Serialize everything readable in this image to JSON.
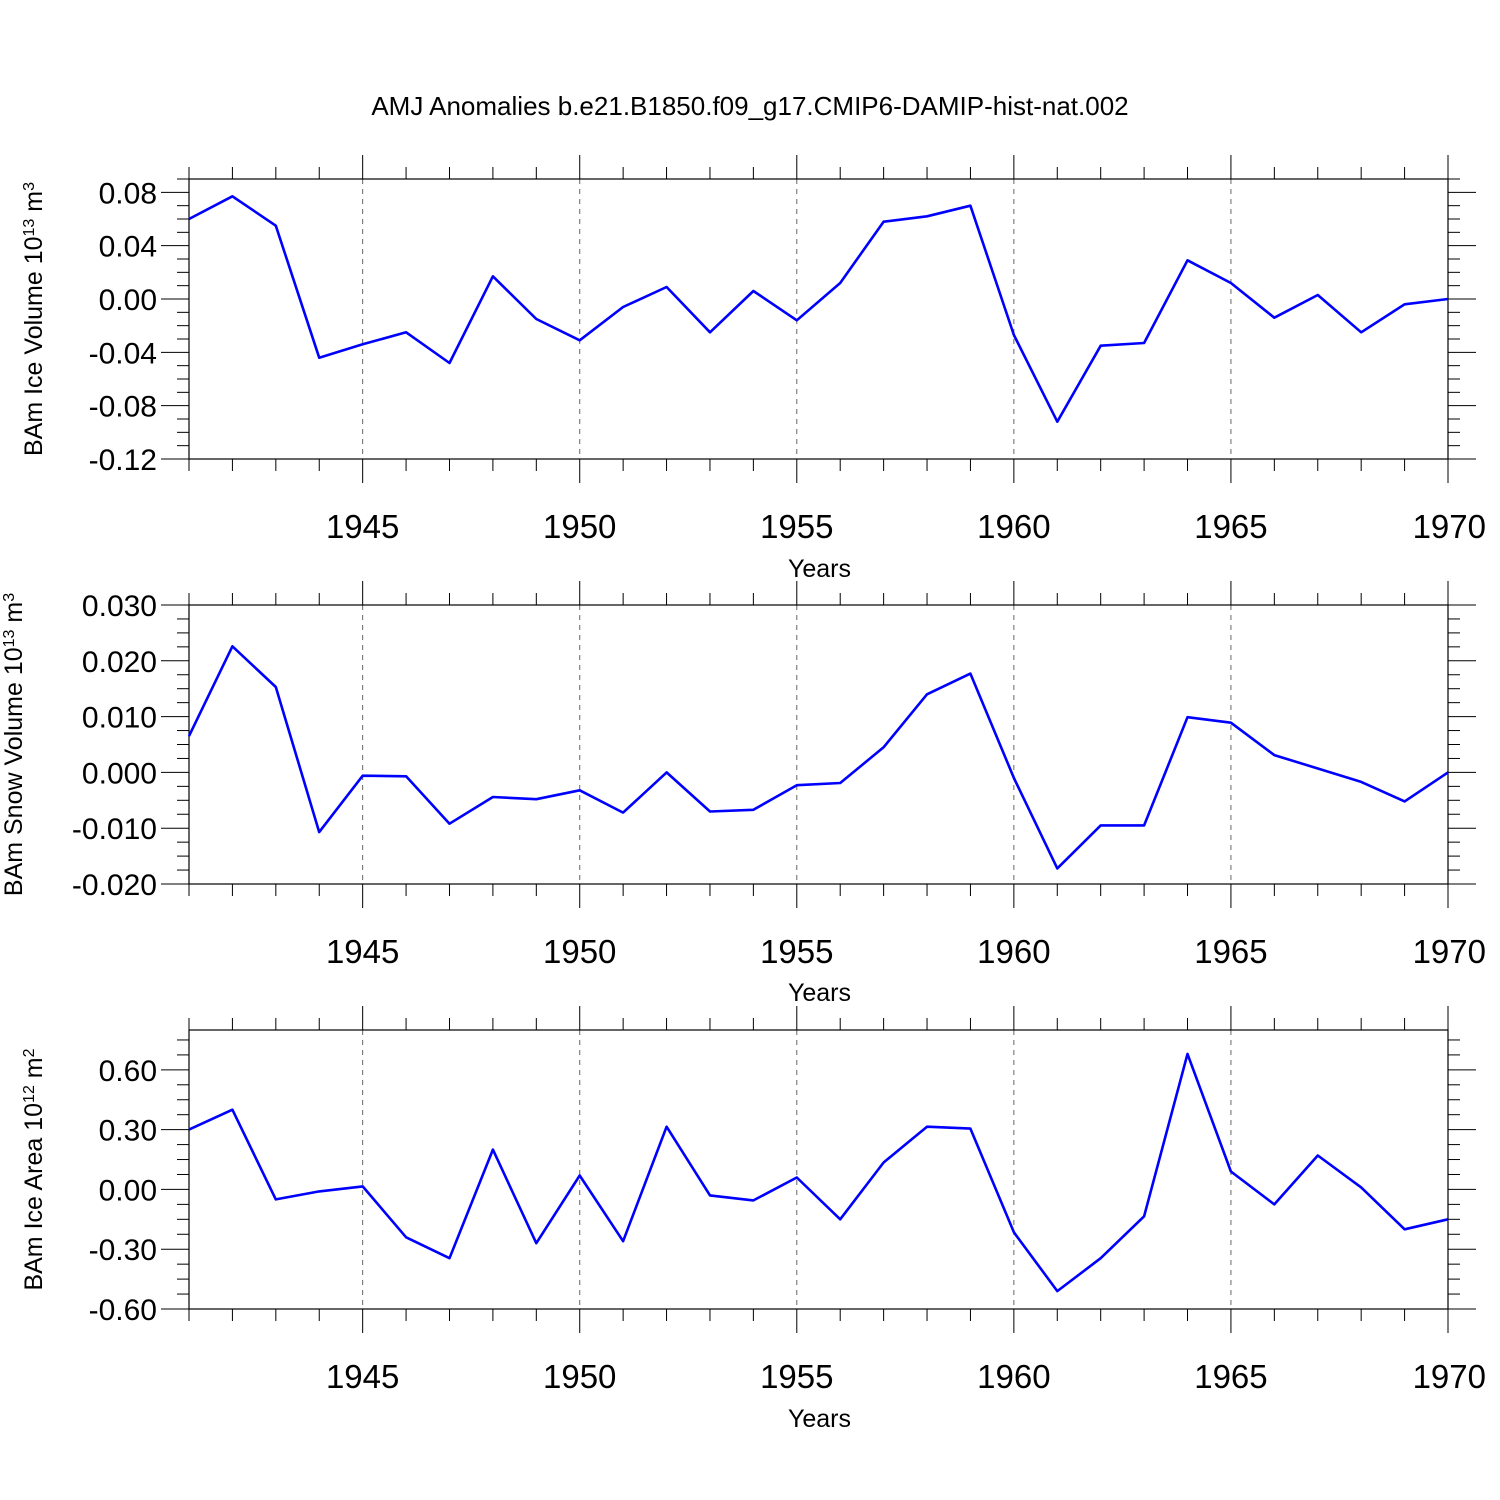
{
  "title": "AMJ Anomalies b.e21.B1850.f09_g17.CMIP6-DAMIP-hist-nat.002",
  "colors": {
    "line": "#0000ff",
    "axis": "#000000",
    "grid": "#666666"
  },
  "chart_data": [
    {
      "type": "line",
      "ylabel": {
        "main": "BAm Ice Volume 10",
        "sup": "13",
        "unit": " m",
        "unit_sup": "3"
      },
      "xlabel": "Years",
      "xlim": [
        1941,
        1970
      ],
      "ylim": [
        -0.12,
        0.09
      ],
      "yticks": [
        -0.12,
        -0.08,
        -0.04,
        0.0,
        0.04,
        0.08
      ],
      "yticklabels": [
        "-0.12",
        "-0.08",
        "-0.04",
        "0.00",
        "0.04",
        "0.08"
      ],
      "xticks": [
        1945,
        1950,
        1955,
        1960,
        1965,
        1970
      ],
      "xticklabels": [
        "1945",
        "1950",
        "1955",
        "1960",
        "1965",
        "1970"
      ],
      "grid": "vertical dashed at labeled years",
      "x": [
        1941,
        1942,
        1943,
        1944,
        1945,
        1946,
        1947,
        1948,
        1949,
        1950,
        1951,
        1952,
        1953,
        1954,
        1955,
        1956,
        1957,
        1958,
        1959,
        1960,
        1961,
        1962,
        1963,
        1964,
        1965,
        1966,
        1967,
        1968,
        1969,
        1970
      ],
      "series": [
        {
          "values": [
            0.06,
            0.077,
            0.055,
            -0.044,
            -0.034,
            -0.025,
            -0.048,
            0.017,
            -0.015,
            -0.031,
            -0.006,
            0.009,
            -0.025,
            0.006,
            -0.016,
            0.012,
            0.058,
            0.062,
            0.07,
            -0.027,
            -0.092,
            -0.035,
            -0.033,
            0.029,
            0.012,
            -0.014,
            0.003,
            -0.025,
            -0.004,
            0.0
          ]
        }
      ]
    },
    {
      "type": "line",
      "ylabel": {
        "main": "BAm Snow Volume 10",
        "sup": "13",
        "unit": " m",
        "unit_sup": "3"
      },
      "xlabel": "Years",
      "xlim": [
        1941,
        1970
      ],
      "ylim": [
        -0.02,
        0.03
      ],
      "yticks": [
        -0.02,
        -0.01,
        0.0,
        0.01,
        0.02,
        0.03
      ],
      "yticklabels": [
        "-0.020",
        "-0.010",
        "0.000",
        "0.010",
        "0.020",
        "0.030"
      ],
      "xticks": [
        1945,
        1950,
        1955,
        1960,
        1965,
        1970
      ],
      "xticklabels": [
        "1945",
        "1950",
        "1955",
        "1960",
        "1965",
        "1970"
      ],
      "grid": "vertical dashed at labeled years",
      "x": [
        1941,
        1942,
        1943,
        1944,
        1945,
        1946,
        1947,
        1948,
        1949,
        1950,
        1951,
        1952,
        1953,
        1954,
        1955,
        1956,
        1957,
        1958,
        1959,
        1960,
        1961,
        1962,
        1963,
        1964,
        1965,
        1966,
        1967,
        1968,
        1969,
        1970
      ],
      "series": [
        {
          "values": [
            0.0065,
            0.0226,
            0.0153,
            -0.0107,
            -0.0006,
            -0.0007,
            -0.0092,
            -0.0044,
            -0.0048,
            -0.0032,
            -0.0072,
            0.0,
            -0.007,
            -0.0067,
            -0.0023,
            -0.0019,
            0.0045,
            0.014,
            0.0177,
            -0.001,
            -0.0172,
            -0.0095,
            -0.0095,
            0.0099,
            0.0089,
            0.0031,
            0.0007,
            -0.0017,
            -0.0052,
            0.0
          ]
        }
      ]
    },
    {
      "type": "line",
      "ylabel": {
        "main": "BAm Ice Area 10",
        "sup": "12",
        "unit": " m",
        "unit_sup": "2"
      },
      "xlabel": "Years",
      "xlim": [
        1941,
        1970
      ],
      "ylim": [
        -0.6,
        0.8
      ],
      "yticks": [
        -0.6,
        -0.3,
        0.0,
        0.3,
        0.6
      ],
      "yticklabels": [
        "-0.60",
        "-0.30",
        "0.00",
        "0.30",
        "0.60"
      ],
      "xticks": [
        1945,
        1950,
        1955,
        1960,
        1965,
        1970
      ],
      "xticklabels": [
        "1945",
        "1950",
        "1955",
        "1960",
        "1965",
        "1970"
      ],
      "grid": "vertical dashed at labeled years",
      "x": [
        1941,
        1942,
        1943,
        1944,
        1945,
        1946,
        1947,
        1948,
        1949,
        1950,
        1951,
        1952,
        1953,
        1954,
        1955,
        1956,
        1957,
        1958,
        1959,
        1960,
        1961,
        1962,
        1963,
        1964,
        1965,
        1966,
        1967,
        1968,
        1969,
        1970
      ],
      "series": [
        {
          "values": [
            0.3,
            0.4,
            -0.05,
            -0.01,
            0.015,
            -0.24,
            -0.345,
            0.2,
            -0.27,
            0.07,
            -0.26,
            0.315,
            -0.03,
            -0.055,
            0.06,
            -0.15,
            0.135,
            0.315,
            0.305,
            -0.215,
            -0.51,
            -0.345,
            -0.135,
            0.68,
            0.09,
            -0.075,
            0.17,
            0.01,
            -0.2,
            -0.15
          ]
        }
      ]
    }
  ]
}
